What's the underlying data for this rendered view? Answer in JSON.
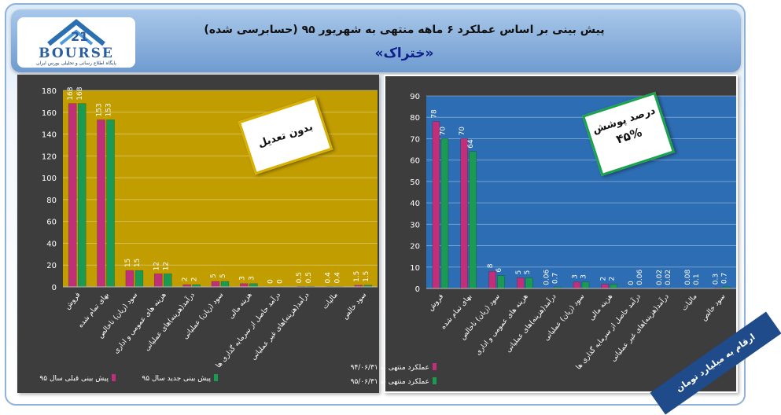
{
  "header": {
    "title": "پیش بینی بر اساس عملکرد ۶ ماهه منتهی به شهریور ۹۵ (حسابرسی شده)",
    "symbol": "«ختراک»",
    "logo_text": "BOURSE",
    "logo_subtitle": "پایگاه اطلاع رسانی و تحلیلی بورس ایران"
  },
  "notes": {
    "left_box": "بدون تعدیل",
    "right_box_line1": "درصد پوشش",
    "right_box_line2": "۴۵%",
    "corner_banner": "ارقام به میلیارد تومان"
  },
  "colors": {
    "series_a": "#c0307a",
    "series_b": "#1a9a52",
    "left_plot_bg": "#c29d00",
    "right_plot_bg": "#2d6db3"
  },
  "chart_data": [
    {
      "type": "bar",
      "ylim": [
        0,
        180
      ],
      "yticks": [
        0,
        20,
        40,
        60,
        80,
        100,
        120,
        140,
        160,
        180
      ],
      "categories": [
        "فروش",
        "بهای تمام شده",
        "سود (زیان) ناخالص",
        "هزینه های عمومی و اداری",
        "درآمد(هزینه)های عملیاتی",
        "سود (زیان) عملیاتی",
        "هزینه مالی",
        "درآمد حاصل از سرمایه گذاری ها",
        "درآمد(هزینه)های غیر عملیاتی",
        "مالیات",
        "سود خالص"
      ],
      "series": [
        {
          "name": "پیش بینی قبلی سال ۹۵",
          "values": [
            168,
            153,
            15,
            12,
            2,
            5,
            3,
            0,
            0.5,
            0.4,
            1.5
          ]
        },
        {
          "name": "پیش بینی جدید سال ۹۵",
          "values": [
            168,
            153,
            15,
            12,
            2,
            5,
            3,
            0,
            0.5,
            0.4,
            1.5
          ]
        }
      ]
    },
    {
      "type": "bar",
      "ylim": [
        0,
        90
      ],
      "yticks": [
        0,
        10,
        20,
        30,
        40,
        50,
        60,
        70,
        80,
        90
      ],
      "categories": [
        "فروش",
        "بهای تمام شده",
        "سود (زیان) ناخالص",
        "هزینه های عمومی و اداری",
        "درآمد(هزینه)های عملیاتی",
        "سود (زیان) عملیاتی",
        "هزینه مالی",
        "درآمد حاصل از سرمایه گذاری ها",
        "درآمد(هزینه)های غیر عملیاتی",
        "مالیات",
        "سود خالص"
      ],
      "series": [
        {
          "name": "عملکرد منتهی به ۹۴/۰۶/۳۱",
          "values": [
            78,
            70,
            8,
            5,
            0.06,
            3,
            2,
            0,
            0.02,
            0.08,
            0.3
          ]
        },
        {
          "name": "عملکرد منتهی به ۹۵/۰۶/۳۱",
          "values": [
            70,
            64,
            6,
            5,
            0.7,
            3,
            2,
            0.06,
            0.02,
            0.1,
            0.7
          ]
        }
      ]
    }
  ]
}
